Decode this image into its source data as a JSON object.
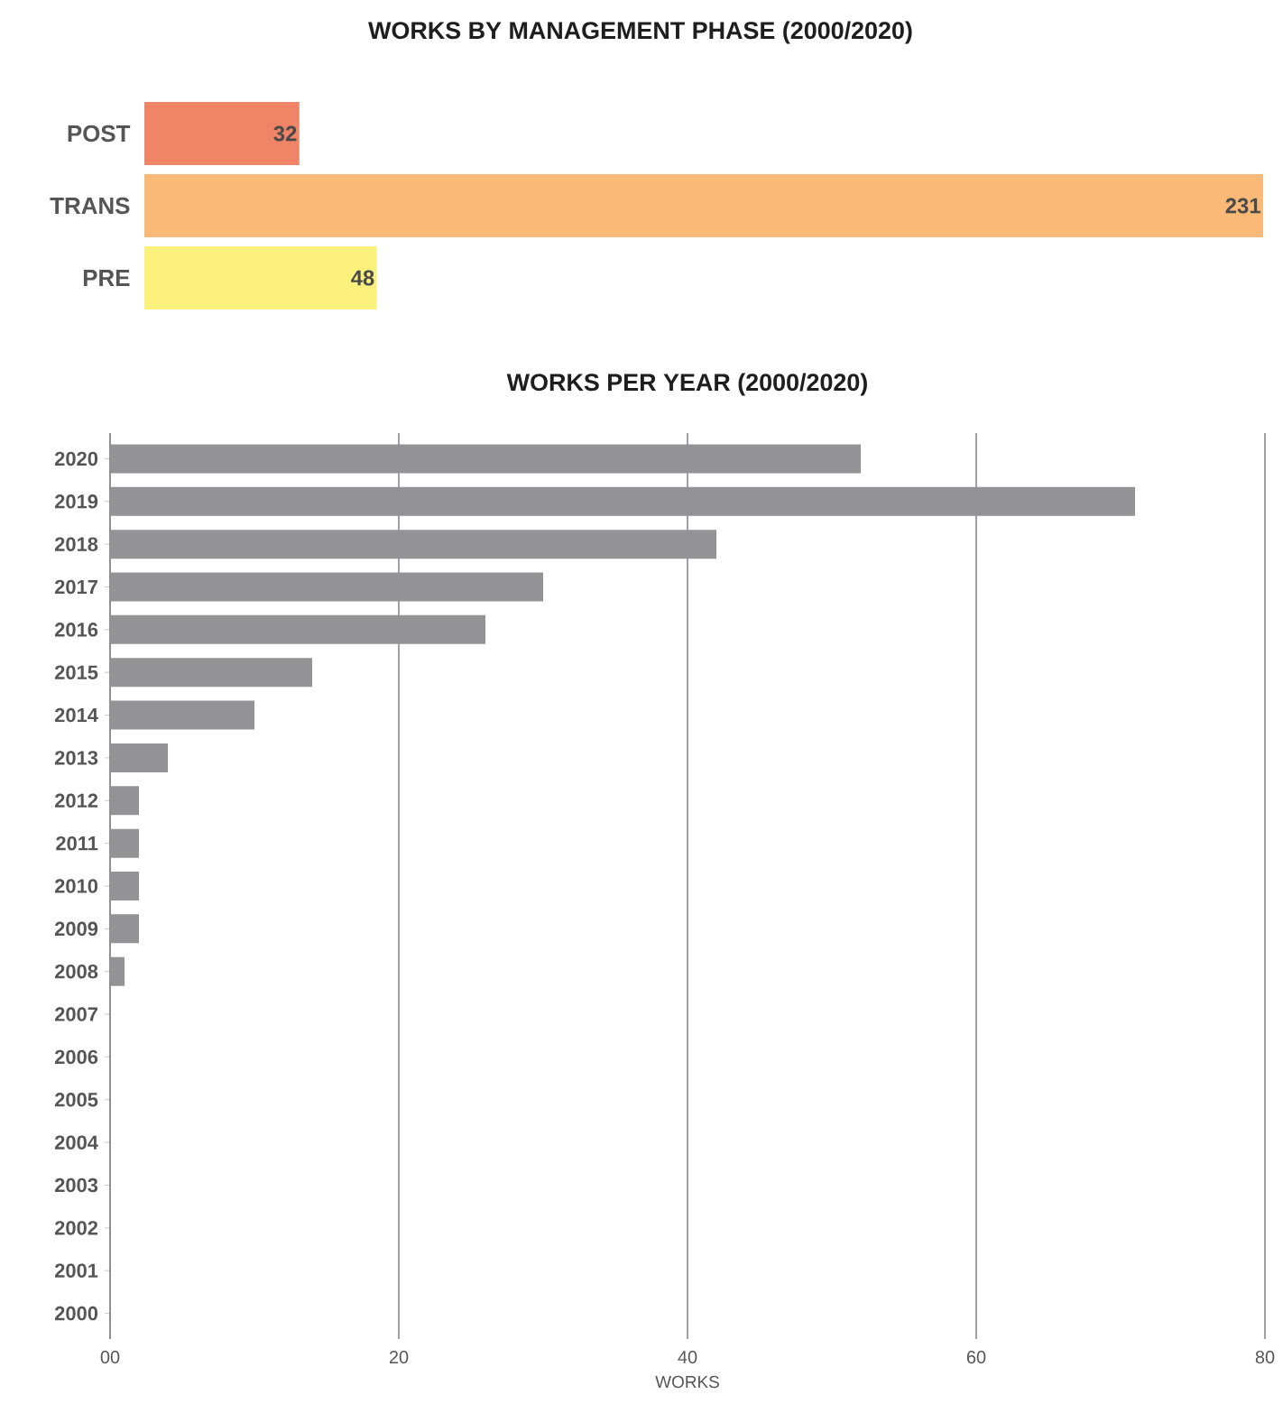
{
  "chart_data": [
    {
      "type": "bar",
      "orientation": "horizontal",
      "title": "WORKS BY MANAGEMENT PHASE (2000/2020)",
      "categories": [
        "POST",
        "TRANS",
        "PRE"
      ],
      "values": [
        32,
        231,
        48
      ],
      "colors": [
        "#f08466",
        "#fbb977",
        "#fdf17e"
      ],
      "data_labels": true
    },
    {
      "type": "bar",
      "orientation": "horizontal",
      "title": "WORKS PER YEAR (2000/2020)",
      "xlabel": "WORKS",
      "categories": [
        "2020",
        "2019",
        "2018",
        "2017",
        "2016",
        "2015",
        "2014",
        "2013",
        "2012",
        "2011",
        "2010",
        "2009",
        "2008",
        "2007",
        "2006",
        "2005",
        "2004",
        "2003",
        "2002",
        "2001",
        "2000"
      ],
      "values": [
        52,
        71,
        42,
        30,
        26,
        14,
        10,
        4,
        2,
        2,
        2,
        2,
        1,
        0,
        0,
        0,
        0,
        0,
        0,
        0,
        0
      ],
      "color": "#939396",
      "xlim": [
        0,
        80
      ],
      "xticks": [
        {
          "value": 0,
          "label": "00"
        },
        20,
        40,
        60,
        80
      ],
      "grid": "x"
    }
  ]
}
